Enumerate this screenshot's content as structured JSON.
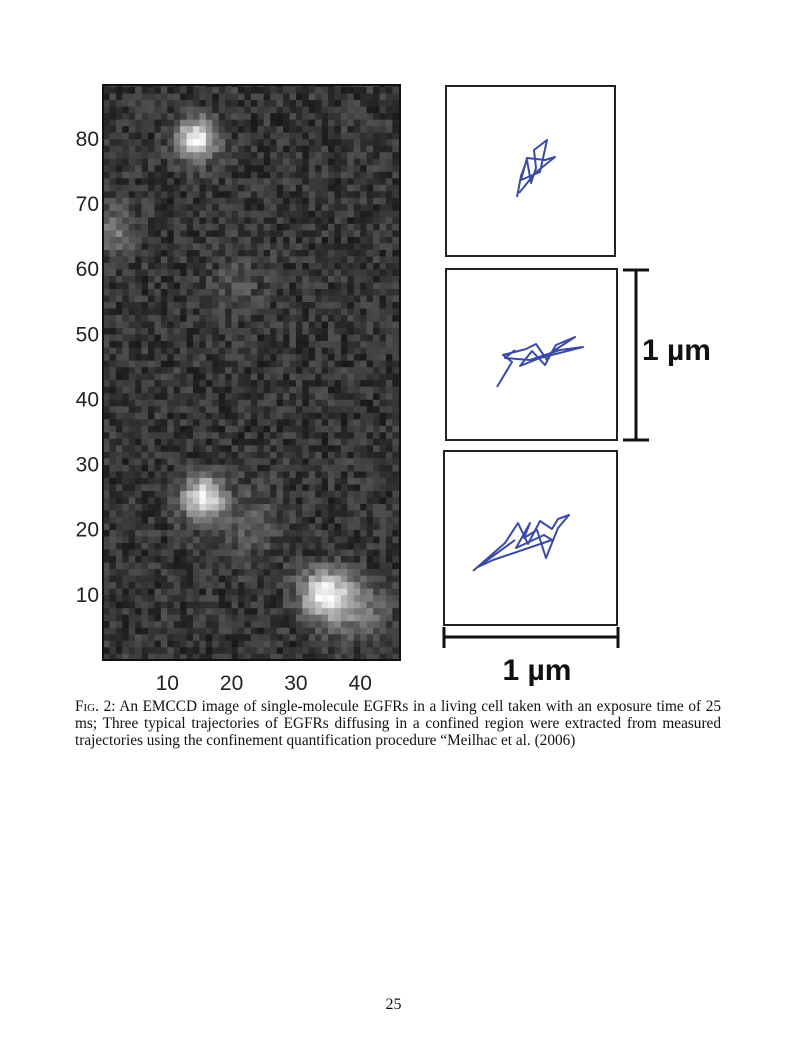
{
  "figure": {
    "y_ticks": [
      10,
      20,
      30,
      40,
      50,
      60,
      70,
      80
    ],
    "x_ticks": [
      10,
      20,
      30,
      40
    ],
    "scale_bar_vertical": "1 µm",
    "scale_bar_horizontal": "1 µm"
  },
  "caption": {
    "label": "Fig. 2:",
    "text": "An EMCCD image of single-molecule EGFRs in a living cell taken with an exposure time of 25 ms; Three typical trajectories of EGFRs diffusing in a confined region were extracted from measured trajectories using the confinement quantification procedure “Meilhac et al. (2006)"
  },
  "page_number": "25"
}
